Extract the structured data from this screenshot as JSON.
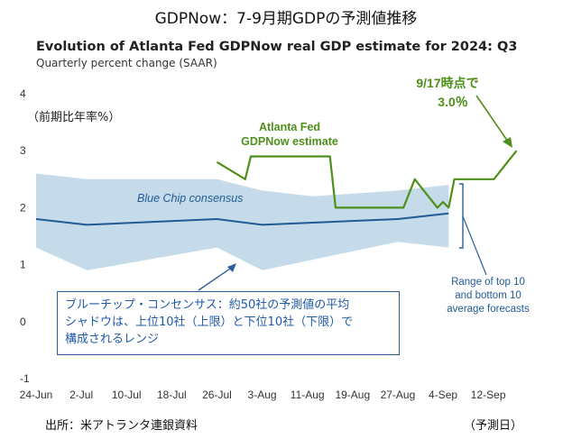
{
  "header": {
    "title": "GDPNow：7-9月期GDPの予測値推移",
    "source": "出所：米アトランタ連銀資料",
    "x_unit_note": "（予測日）",
    "y_unit_note": "（前期比年率%）"
  },
  "chart_data": {
    "type": "line",
    "title": "Evolution of Atlanta Fed GDPNow real GDP estimate for 2024: Q3",
    "subtitle": "Quarterly percent change (SAAR)",
    "xlabel": "",
    "ylabel": "",
    "ylim": [
      -1,
      4
    ],
    "yticks": [
      "-1",
      "0",
      "1",
      "2",
      "3",
      "4"
    ],
    "xlim": [
      "2024-06-24",
      "2024-09-19"
    ],
    "xticks": [
      {
        "date": "2024-06-24",
        "label": "24-Jun"
      },
      {
        "date": "2024-07-02",
        "label": "2-Jul"
      },
      {
        "date": "2024-07-10",
        "label": "10-Jul"
      },
      {
        "date": "2024-07-18",
        "label": "18-Jul"
      },
      {
        "date": "2024-07-26",
        "label": "26-Jul"
      },
      {
        "date": "2024-08-03",
        "label": "3-Aug"
      },
      {
        "date": "2024-08-11",
        "label": "11-Aug"
      },
      {
        "date": "2024-08-19",
        "label": "19-Aug"
      },
      {
        "date": "2024-08-27",
        "label": "27-Aug"
      },
      {
        "date": "2024-09-04",
        "label": "4-Sep"
      },
      {
        "date": "2024-09-12",
        "label": "12-Sep"
      }
    ],
    "grid": false,
    "series": [
      {
        "name": "Atlanta Fed GDPNow estimate",
        "label_lines": [
          "Atlanta Fed",
          "GDPNow estimate"
        ],
        "color": "#4e8f1b",
        "points": [
          {
            "x": "2024-07-26",
            "y": 2.8
          },
          {
            "x": "2024-07-31",
            "y": 2.5
          },
          {
            "x": "2024-08-01",
            "y": 2.9
          },
          {
            "x": "2024-08-08",
            "y": 2.9
          },
          {
            "x": "2024-08-15",
            "y": 2.9
          },
          {
            "x": "2024-08-16",
            "y": 2.0
          },
          {
            "x": "2024-08-21",
            "y": 2.0
          },
          {
            "x": "2024-08-28",
            "y": 2.0
          },
          {
            "x": "2024-08-30",
            "y": 2.5
          },
          {
            "x": "2024-09-03",
            "y": 2.0
          },
          {
            "x": "2024-09-04",
            "y": 2.1
          },
          {
            "x": "2024-09-05",
            "y": 2.0
          },
          {
            "x": "2024-09-06",
            "y": 2.5
          },
          {
            "x": "2024-09-09",
            "y": 2.5
          },
          {
            "x": "2024-09-13",
            "y": 2.5
          },
          {
            "x": "2024-09-17",
            "y": 3.0
          }
        ]
      },
      {
        "name": "Blue Chip consensus",
        "color": "#1f5a96",
        "points": [
          {
            "x": "2024-06-24",
            "y": 1.8
          },
          {
            "x": "2024-07-03",
            "y": 1.7
          },
          {
            "x": "2024-07-26",
            "y": 1.8
          },
          {
            "x": "2024-08-03",
            "y": 1.7
          },
          {
            "x": "2024-08-27",
            "y": 1.8
          },
          {
            "x": "2024-09-05",
            "y": 1.9
          }
        ]
      }
    ],
    "band": {
      "name": "Range of top 10 and bottom 10 average forecasts",
      "color": "#c5dbea",
      "upper": [
        {
          "x": "2024-06-24",
          "y": 2.6
        },
        {
          "x": "2024-07-03",
          "y": 2.5
        },
        {
          "x": "2024-07-26",
          "y": 2.5
        },
        {
          "x": "2024-08-03",
          "y": 2.3
        },
        {
          "x": "2024-08-12",
          "y": 2.2
        },
        {
          "x": "2024-08-27",
          "y": 2.3
        },
        {
          "x": "2024-09-05",
          "y": 2.4
        }
      ],
      "lower": [
        {
          "x": "2024-06-24",
          "y": 1.3
        },
        {
          "x": "2024-07-03",
          "y": 0.9
        },
        {
          "x": "2024-07-26",
          "y": 1.3
        },
        {
          "x": "2024-08-03",
          "y": 0.9
        },
        {
          "x": "2024-08-27",
          "y": 1.4
        },
        {
          "x": "2024-09-05",
          "y": 1.3
        }
      ]
    },
    "annotations": {
      "band_label": "Blue Chip consensus",
      "range_label": [
        "Range of top 10",
        "and bottom 10",
        "average forecasts"
      ],
      "latest_label": [
        "9/17時点で",
        "3.0％"
      ],
      "callout_lines": [
        "ブルーチップ・コンセンサス：約50社の予測値の平均",
        "シャドウは、上位10社（上限）と下位10社（下限）で",
        "構成されるレンジ"
      ]
    }
  }
}
